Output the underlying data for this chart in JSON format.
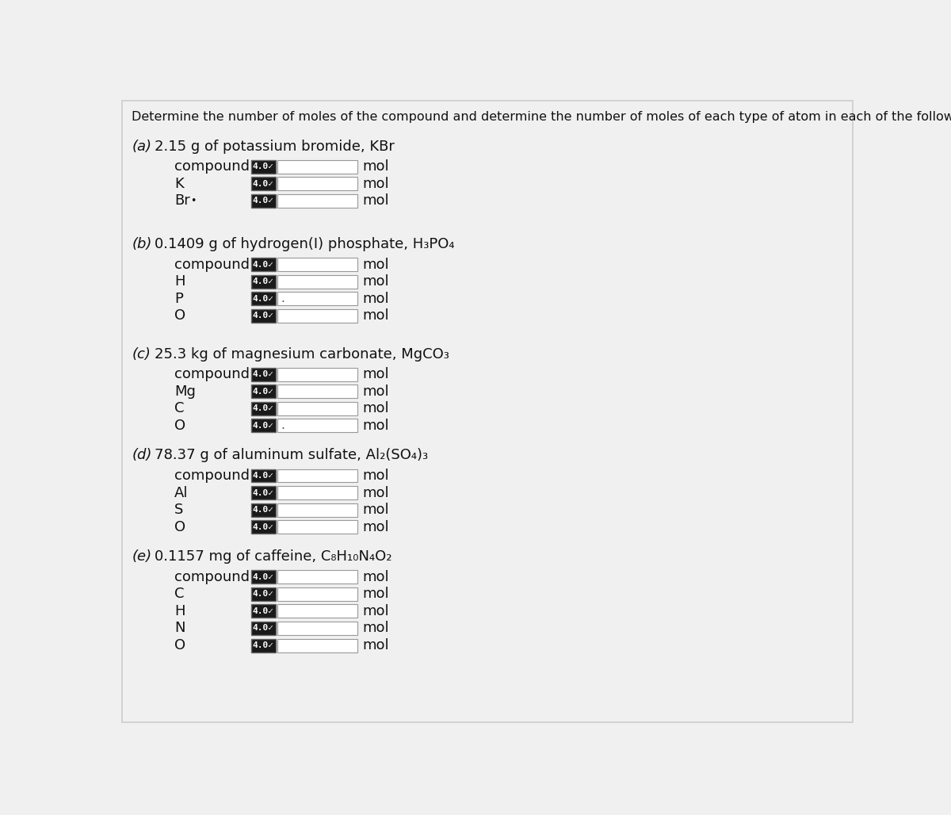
{
  "title": "Determine the number of moles of the compound and determine the number of moles of each type of atom in each of the following.",
  "bg_color": "#f0f0f0",
  "panel_bg": "#f0f0f0",
  "sections": [
    {
      "label": "(a)",
      "desc": "2.15 g of potassium bromide, KBr",
      "rows": [
        "compound",
        "K",
        "Br"
      ]
    },
    {
      "label": "(b)",
      "desc": "0.1409 g of hydrogen(I) phosphate, H₃PO₄",
      "rows": [
        "compound",
        "H",
        "P",
        "O"
      ]
    },
    {
      "label": "(c)",
      "desc": "25.3 kg of magnesium carbonate, MgCO₃",
      "rows": [
        "compound",
        "Mg",
        "C",
        "O"
      ]
    },
    {
      "label": "(d)",
      "desc": "78.37 g of aluminum sulfate, Al₂(SO₄)₃",
      "rows": [
        "compound",
        "Al",
        "S",
        "O"
      ]
    },
    {
      "label": "(e)",
      "desc": "0.1157 mg of caffeine, C₈H₁₀N₄O₂",
      "rows": [
        "compound",
        "C",
        "H",
        "N",
        "O"
      ]
    }
  ],
  "btn_bg": "#1a1a1a",
  "btn_fg": "#ffffff",
  "input_bg": "#ffffff",
  "input_border": "#999999",
  "font_color": "#111111",
  "title_fontsize": 11.5,
  "section_header_fontsize": 13,
  "row_label_fontsize": 13,
  "mol_fontsize": 13,
  "btn_fontsize": 8.0
}
